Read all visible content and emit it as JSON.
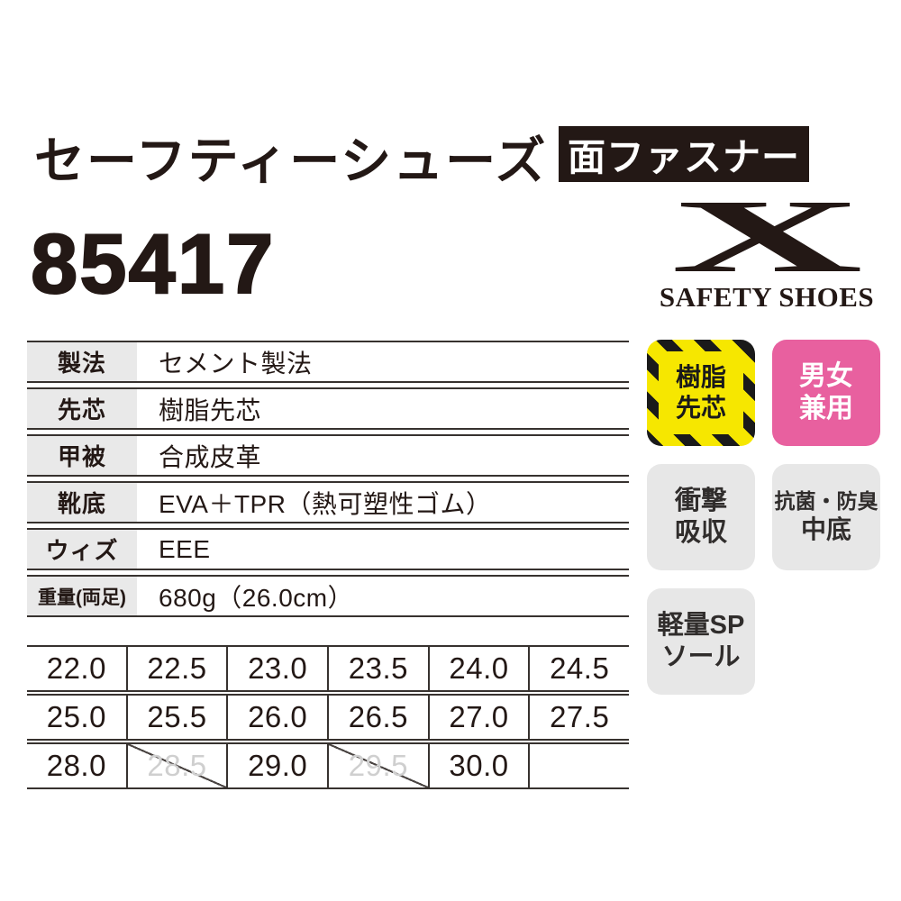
{
  "header": {
    "title": "セーフティーシューズ",
    "fastener_badge": "面ファスナー",
    "product_number": "85417"
  },
  "logo": {
    "mark": "X",
    "text": "SAFETY SHOES"
  },
  "spec_table": {
    "rows": [
      {
        "label": "製法",
        "value": "セメント製法"
      },
      {
        "label": "先芯",
        "value": "樹脂先芯"
      },
      {
        "label": "甲被",
        "value": "合成皮革"
      },
      {
        "label": "靴底",
        "value": "EVA＋TPR（熱可塑性ゴム）"
      },
      {
        "label": "ウィズ",
        "value": "EEE"
      },
      {
        "label": "重量(両足)",
        "value": "680g（26.0cm）",
        "small": true
      }
    ]
  },
  "feature_badges": [
    {
      "id": "resin-toe-cap",
      "style": "hazard-yellow",
      "line1": "樹脂",
      "line2": "先芯"
    },
    {
      "id": "unisex",
      "style": "pink",
      "line1": "男女",
      "line2": "兼用"
    },
    {
      "id": "shock-absorption",
      "style": "gray",
      "line1": "衝撃",
      "line2": "吸収"
    },
    {
      "id": "antibacterial-deodorant-insole",
      "style": "gray",
      "line1": "抗菌・防臭",
      "line2": "中底"
    },
    {
      "id": "lightweight-sp-sole",
      "style": "gray",
      "line1": "軽量SP",
      "line2": "ソール"
    }
  ],
  "size_table": {
    "rows": [
      {
        "cells": [
          {
            "label": "22.0"
          },
          {
            "label": "22.5"
          },
          {
            "label": "23.0"
          },
          {
            "label": "23.5"
          },
          {
            "label": "24.0"
          },
          {
            "label": "24.5"
          }
        ]
      },
      {
        "cells": [
          {
            "label": "25.0"
          },
          {
            "label": "25.5"
          },
          {
            "label": "26.0"
          },
          {
            "label": "26.5"
          },
          {
            "label": "27.0"
          },
          {
            "label": "27.5"
          }
        ]
      },
      {
        "cells": [
          {
            "label": "28.0"
          },
          {
            "label": "28.5",
            "crossed": true
          },
          {
            "label": "29.0"
          },
          {
            "label": "29.5",
            "crossed": true
          },
          {
            "label": "30.0"
          },
          {
            "label": ""
          }
        ]
      }
    ]
  },
  "colors": {
    "print_black": "#231815",
    "hazard_yellow": "#f6e700",
    "accent_pink": "#e8609f",
    "badge_gray": "#e7e7e7",
    "label_gray": "#e9e9e9",
    "crossed_out_gray": "#cfcfcf"
  }
}
